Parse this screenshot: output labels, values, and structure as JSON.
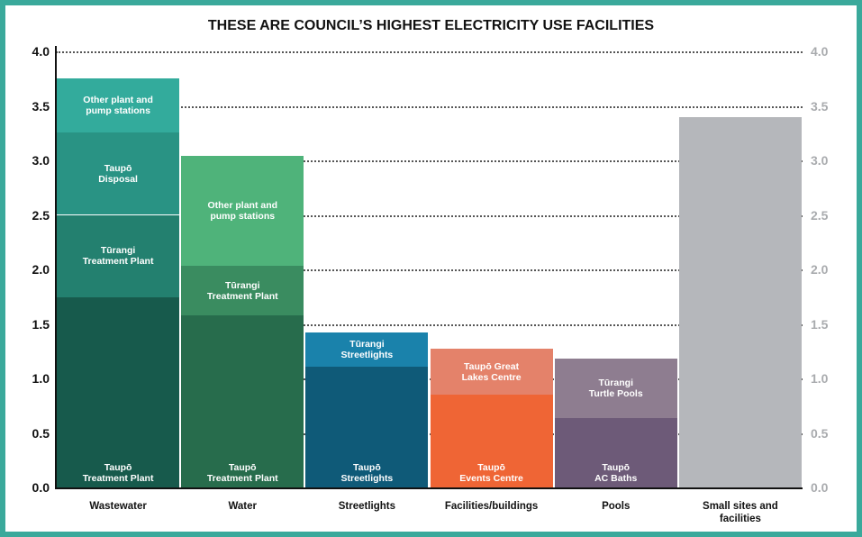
{
  "chart_data": {
    "type": "stacked-bar",
    "title": "THESE ARE COUNCIL’S HIGHEST ELECTRICITY USE FACILITIES",
    "categories": [
      "Wastewater",
      "Water",
      "Streetlights",
      "Facilities/buildings",
      "Pools",
      "Small sites and\nfacilities"
    ],
    "stacks": [
      [
        {
          "name": "Taupō\nTreatment Plant",
          "color": "#175a4c",
          "value": 1.74
        },
        {
          "name": "Tūrangi\nTreatment Plant",
          "color": "#23806f",
          "value": 0.76
        },
        {
          "name": "Taupō\nDisposal",
          "color": "#299384",
          "value": 0.76
        },
        {
          "name": "Other plant and\npump stations",
          "color": "#33ab9c",
          "value": 0.49
        }
      ],
      [
        {
          "name": "Taupō\nTreatment Plant",
          "color": "#276c4c",
          "value": 1.58
        },
        {
          "name": "Tūrangi\nTreatment Plant",
          "color": "#3a8c60",
          "value": 0.45
        },
        {
          "name": "Other plant and\npump stations",
          "color": "#4fb37a",
          "value": 1.01
        }
      ],
      [
        {
          "name": "Taupō\nStreetlights",
          "color": "#0f5a78",
          "value": 1.11
        },
        {
          "name": "Tūrangi\nStreetlights",
          "color": "#1a82ab",
          "value": 0.31
        }
      ],
      [
        {
          "name": "Taupō\nEvents Centre",
          "color": "#ef6535",
          "value": 0.85
        },
        {
          "name": "Taupō Great\nLakes Centre",
          "color": "#e4826a",
          "value": 0.42
        }
      ],
      [
        {
          "name": "Taupō\nAC Baths",
          "color": "#6d5a78",
          "value": 0.64
        },
        {
          "name": "Tūrangi\nTurtle Pools",
          "color": "#8e7d90",
          "value": 0.54
        }
      ],
      [
        {
          "color": "#b5b7bb",
          "value": 3.4
        }
      ]
    ],
    "ylim": [
      0,
      4
    ],
    "yticks": [
      {
        "value": 0,
        "label": "0.0"
      },
      {
        "value": 0.5,
        "label": "0.5"
      },
      {
        "value": 1,
        "label": "1.0"
      },
      {
        "value": 1.5,
        "label": "1.5"
      },
      {
        "value": 2,
        "label": "2.0"
      },
      {
        "value": 2.5,
        "label": "2.5"
      },
      {
        "value": 3,
        "label": "3.0"
      },
      {
        "value": 3.5,
        "label": "3.5"
      },
      {
        "value": 4,
        "label": "4.0"
      }
    ],
    "y2lim": [
      0,
      4
    ],
    "y2ticks": [
      {
        "value": 0,
        "label": "0.0"
      },
      {
        "value": 0.5,
        "label": "0.5"
      },
      {
        "value": 1,
        "label": "1.0"
      },
      {
        "value": 1.5,
        "label": "1.5"
      },
      {
        "value": 2,
        "label": "2.0"
      },
      {
        "value": 2.5,
        "label": "2.5"
      },
      {
        "value": 3,
        "label": "3.0"
      },
      {
        "value": 3.5,
        "label": "3.5"
      },
      {
        "value": 4,
        "label": "4.0"
      }
    ],
    "grid": true
  }
}
